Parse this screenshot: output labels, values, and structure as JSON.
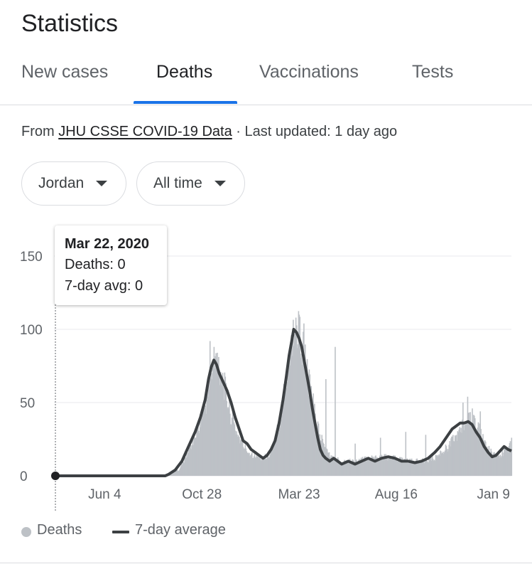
{
  "page": {
    "title": "Statistics"
  },
  "tabs": [
    {
      "label": "New cases",
      "active": false
    },
    {
      "label": "Deaths",
      "active": true
    },
    {
      "label": "Vaccinations",
      "active": false
    },
    {
      "label": "Tests",
      "active": false
    }
  ],
  "source": {
    "prefix": "From ",
    "link_text": "JHU CSSE COVID-19 Data",
    "suffix": " · Last updated: 1 day ago"
  },
  "filters": {
    "location": "Jordan",
    "range": "All time"
  },
  "tooltip": {
    "date": "Mar 22, 2020",
    "deaths": "Deaths: 0",
    "avg": "7-day avg: 0"
  },
  "legend": {
    "bars_label": "Deaths",
    "line_label": "7-day average"
  },
  "colors": {
    "accent": "#1a73e8",
    "bar": "#bdc1c6",
    "line": "#3c4043",
    "grid": "#e8eaed",
    "text_secondary": "#5f6368"
  },
  "chart_data": {
    "type": "bar",
    "title": "",
    "xlabel": "",
    "ylabel": "",
    "ylim": [
      0,
      150
    ],
    "y_ticks": [
      0,
      50,
      100,
      150
    ],
    "x_tick_labels": [
      "Jun 4",
      "Oct 28",
      "Mar 23",
      "Aug 16",
      "Jan 9"
    ],
    "x_tick_days": [
      74,
      220,
      366,
      512,
      658
    ],
    "x_range_days": [
      0,
      685
    ],
    "start_date": "Mar 22, 2020",
    "grid": true,
    "legend_position": "bottom-left",
    "series": [
      {
        "name": "Deaths",
        "kind": "bars",
        "points": [
          [
            0,
            0
          ],
          [
            150,
            0
          ],
          [
            165,
            1
          ],
          [
            185,
            4
          ],
          [
            195,
            12
          ],
          [
            205,
            22
          ],
          [
            215,
            34
          ],
          [
            225,
            48
          ],
          [
            232,
            62
          ],
          [
            238,
            75
          ],
          [
            243,
            80
          ],
          [
            248,
            72
          ],
          [
            255,
            58
          ],
          [
            262,
            44
          ],
          [
            270,
            32
          ],
          [
            280,
            22
          ],
          [
            290,
            16
          ],
          [
            300,
            14
          ],
          [
            310,
            12
          ],
          [
            320,
            14
          ],
          [
            330,
            24
          ],
          [
            338,
            42
          ],
          [
            346,
            64
          ],
          [
            352,
            84
          ],
          [
            357,
            98
          ],
          [
            361,
            104
          ],
          [
            366,
            98
          ],
          [
            372,
            86
          ],
          [
            378,
            70
          ],
          [
            384,
            54
          ],
          [
            390,
            42
          ],
          [
            396,
            30
          ],
          [
            402,
            22
          ],
          [
            408,
            16
          ],
          [
            416,
            12
          ],
          [
            430,
            10
          ],
          [
            450,
            10
          ],
          [
            470,
            12
          ],
          [
            490,
            13
          ],
          [
            510,
            12
          ],
          [
            530,
            10
          ],
          [
            550,
            10
          ],
          [
            570,
            12
          ],
          [
            585,
            18
          ],
          [
            600,
            26
          ],
          [
            612,
            34
          ],
          [
            624,
            38
          ],
          [
            632,
            36
          ],
          [
            640,
            28
          ],
          [
            650,
            18
          ],
          [
            658,
            14
          ],
          [
            668,
            14
          ],
          [
            678,
            18
          ],
          [
            685,
            22
          ]
        ],
        "spikes": [
          [
            232,
            92
          ],
          [
            238,
            88
          ],
          [
            243,
            84
          ],
          [
            354,
            96
          ],
          [
            361,
            108
          ],
          [
            366,
            110
          ],
          [
            373,
            104
          ],
          [
            420,
            88
          ],
          [
            406,
            66
          ],
          [
            450,
            22
          ],
          [
            488,
            26
          ],
          [
            526,
            30
          ],
          [
            556,
            28
          ],
          [
            612,
            50
          ],
          [
            619,
            54
          ],
          [
            626,
            46
          ],
          [
            638,
            44
          ],
          [
            685,
            26
          ]
        ]
      },
      {
        "name": "7-day average",
        "kind": "line",
        "points": [
          [
            0,
            0
          ],
          [
            150,
            0
          ],
          [
            165,
            0
          ],
          [
            170,
            1
          ],
          [
            180,
            4
          ],
          [
            190,
            10
          ],
          [
            200,
            20
          ],
          [
            210,
            30
          ],
          [
            218,
            40
          ],
          [
            225,
            52
          ],
          [
            230,
            66
          ],
          [
            234,
            74
          ],
          [
            238,
            79
          ],
          [
            242,
            76
          ],
          [
            246,
            70
          ],
          [
            252,
            64
          ],
          [
            258,
            58
          ],
          [
            264,
            50
          ],
          [
            270,
            40
          ],
          [
            276,
            32
          ],
          [
            282,
            24
          ],
          [
            288,
            22
          ],
          [
            294,
            18
          ],
          [
            300,
            16
          ],
          [
            306,
            14
          ],
          [
            312,
            12
          ],
          [
            318,
            14
          ],
          [
            324,
            18
          ],
          [
            330,
            24
          ],
          [
            336,
            36
          ],
          [
            342,
            52
          ],
          [
            347,
            68
          ],
          [
            351,
            82
          ],
          [
            355,
            92
          ],
          [
            358,
            100
          ],
          [
            362,
            98
          ],
          [
            366,
            94
          ],
          [
            370,
            88
          ],
          [
            374,
            78
          ],
          [
            378,
            68
          ],
          [
            382,
            58
          ],
          [
            386,
            46
          ],
          [
            390,
            36
          ],
          [
            394,
            26
          ],
          [
            398,
            18
          ],
          [
            402,
            14
          ],
          [
            406,
            12
          ],
          [
            412,
            10
          ],
          [
            418,
            12
          ],
          [
            424,
            10
          ],
          [
            430,
            8
          ],
          [
            440,
            10
          ],
          [
            450,
            8
          ],
          [
            460,
            10
          ],
          [
            470,
            12
          ],
          [
            480,
            10
          ],
          [
            490,
            12
          ],
          [
            500,
            13
          ],
          [
            510,
            12
          ],
          [
            520,
            10
          ],
          [
            530,
            10
          ],
          [
            540,
            9
          ],
          [
            550,
            10
          ],
          [
            560,
            12
          ],
          [
            570,
            16
          ],
          [
            578,
            20
          ],
          [
            584,
            24
          ],
          [
            590,
            28
          ],
          [
            596,
            32
          ],
          [
            602,
            34
          ],
          [
            608,
            36
          ],
          [
            614,
            36
          ],
          [
            620,
            37
          ],
          [
            626,
            35
          ],
          [
            632,
            30
          ],
          [
            638,
            26
          ],
          [
            644,
            20
          ],
          [
            650,
            16
          ],
          [
            656,
            13
          ],
          [
            662,
            14
          ],
          [
            668,
            17
          ],
          [
            674,
            20
          ],
          [
            680,
            18
          ],
          [
            685,
            17
          ]
        ]
      }
    ]
  }
}
